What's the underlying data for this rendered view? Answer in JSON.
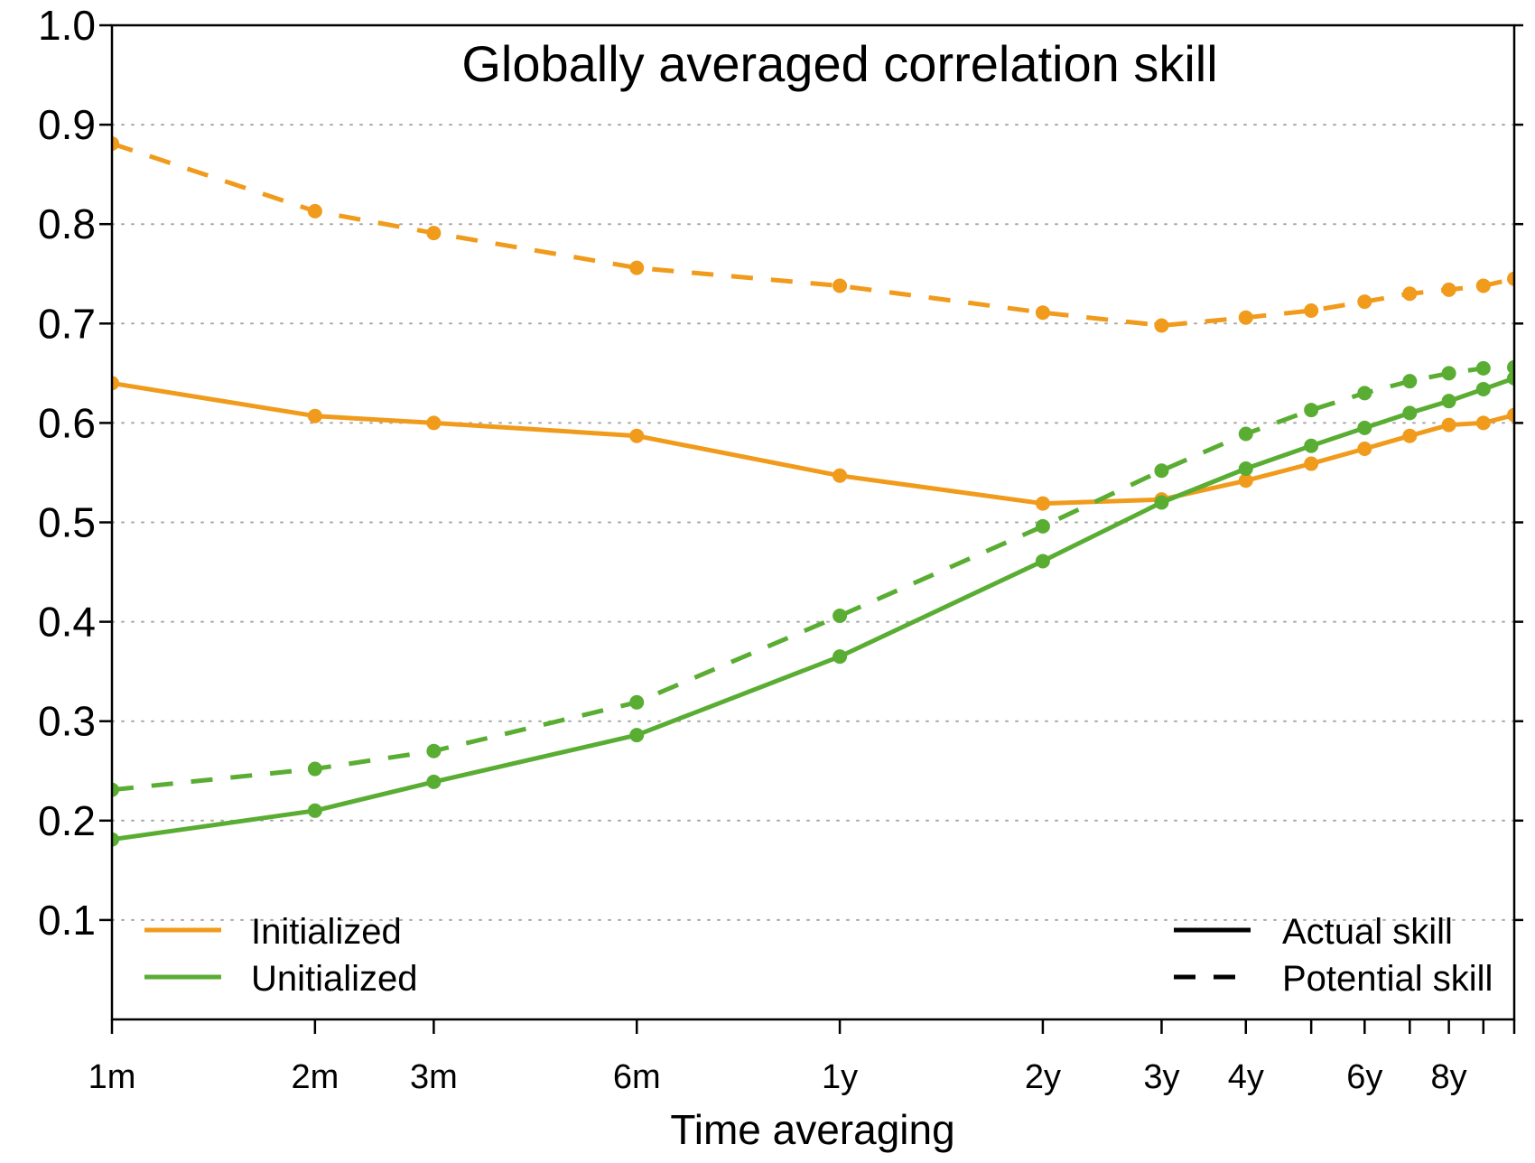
{
  "chart_data": {
    "type": "line",
    "title": "Globally averaged correlation skill",
    "xlabel": "Time averaging",
    "ylabel": "",
    "x_scale": "log",
    "x_unit": "months",
    "xlim": [
      1,
      120
    ],
    "ylim": [
      0,
      1.0
    ],
    "y_ticks": [
      0.1,
      0.2,
      0.3,
      0.4,
      0.5,
      0.6,
      0.7,
      0.8,
      0.9,
      1.0
    ],
    "x_ticks": [
      1,
      2,
      3,
      6,
      12,
      24,
      36,
      48,
      60,
      72,
      84,
      96,
      108,
      120
    ],
    "x_tick_labels": [
      {
        "x": 1,
        "label": "1m"
      },
      {
        "x": 2,
        "label": "2m"
      },
      {
        "x": 3,
        "label": "3m"
      },
      {
        "x": 6,
        "label": "6m"
      },
      {
        "x": 12,
        "label": "1y"
      },
      {
        "x": 24,
        "label": "2y"
      },
      {
        "x": 36,
        "label": "3y"
      },
      {
        "x": 48,
        "label": "4y"
      },
      {
        "x": 72,
        "label": "6y"
      },
      {
        "x": 96,
        "label": "8y"
      }
    ],
    "grid": "horizontal-dotted",
    "x": [
      1,
      2,
      3,
      6,
      12,
      24,
      36,
      48,
      60,
      72,
      84,
      96,
      108,
      120
    ],
    "series": [
      {
        "name": "Initialized",
        "skill": "Actual skill",
        "color": "#f09b1b",
        "dash": "solid",
        "values": [
          0.64,
          0.607,
          0.6,
          0.587,
          0.547,
          0.519,
          0.523,
          0.542,
          0.559,
          0.574,
          0.587,
          0.598,
          0.6,
          0.608
        ]
      },
      {
        "name": "Initialized",
        "skill": "Potential skill",
        "color": "#f09b1b",
        "dash": "dashed",
        "values": [
          0.881,
          0.813,
          0.791,
          0.756,
          0.738,
          0.711,
          0.698,
          0.706,
          0.713,
          0.722,
          0.73,
          0.734,
          0.738,
          0.745
        ]
      },
      {
        "name": "Unitialized",
        "skill": "Actual skill",
        "color": "#5aad33",
        "dash": "solid",
        "values": [
          0.181,
          0.21,
          0.239,
          0.286,
          0.365,
          0.461,
          0.52,
          0.554,
          0.577,
          0.595,
          0.61,
          0.622,
          0.634,
          0.645
        ]
      },
      {
        "name": "Unitialized",
        "skill": "Potential skill",
        "color": "#5aad33",
        "dash": "dashed",
        "values": [
          0.231,
          0.252,
          0.27,
          0.319,
          0.406,
          0.496,
          0.552,
          0.589,
          0.613,
          0.63,
          0.642,
          0.65,
          0.655,
          0.656
        ]
      }
    ],
    "legend_left": {
      "placement": "bottom-left",
      "entries": [
        {
          "label": "Initialized",
          "color": "#f09b1b"
        },
        {
          "label": "Unitialized",
          "color": "#5aad33"
        }
      ]
    },
    "legend_right": {
      "placement": "bottom-right",
      "entries": [
        {
          "label": "Actual skill",
          "dash": "solid"
        },
        {
          "label": "Potential skill",
          "dash": "dashed"
        }
      ]
    }
  }
}
